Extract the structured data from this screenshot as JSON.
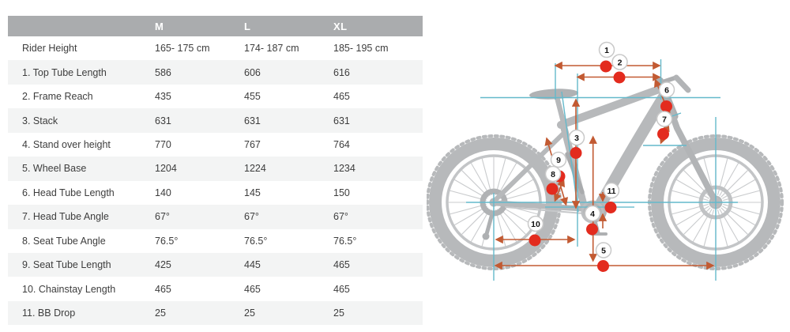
{
  "table": {
    "columns": [
      "M",
      "L",
      "XL"
    ],
    "rows": [
      {
        "label": "Rider Height",
        "values": [
          "165- 175 cm",
          "174- 187 cm",
          "185- 195 cm"
        ]
      },
      {
        "label": "1. Top Tube Length",
        "values": [
          "586",
          "606",
          "616"
        ]
      },
      {
        "label": "2. Frame Reach",
        "values": [
          "435",
          "455",
          "465"
        ]
      },
      {
        "label": "3. Stack",
        "values": [
          "631",
          "631",
          "631"
        ]
      },
      {
        "label": "4. Stand over height",
        "values": [
          "770",
          "767",
          "764"
        ]
      },
      {
        "label": "5. Wheel Base",
        "values": [
          "1204",
          "1224",
          "1234"
        ]
      },
      {
        "label": "6. Head Tube Length",
        "values": [
          "140",
          "145",
          "150"
        ]
      },
      {
        "label": "7. Head Tube Angle",
        "values": [
          "67°",
          "67°",
          "67°"
        ]
      },
      {
        "label": "8. Seat Tube Angle",
        "values": [
          "76.5°",
          "76.5°",
          "76.5°"
        ]
      },
      {
        "label": "9. Seat Tube Length",
        "values": [
          "425",
          "445",
          "465"
        ]
      },
      {
        "label": "10. Chainstay Length",
        "values": [
          "465",
          "465",
          "465"
        ]
      },
      {
        "label": "11. BB Drop",
        "values": [
          "25",
          "25",
          "25"
        ]
      }
    ]
  },
  "diagram": {
    "markers": [
      {
        "label": "1"
      },
      {
        "label": "2"
      },
      {
        "label": "3"
      },
      {
        "label": "4"
      },
      {
        "label": "5"
      },
      {
        "label": "6"
      },
      {
        "label": "7"
      },
      {
        "label": "8"
      },
      {
        "label": "9"
      },
      {
        "label": "10"
      },
      {
        "label": "11"
      }
    ]
  },
  "colors": {
    "header_bg": "#aaacae",
    "row_alt_bg": "#f3f4f4",
    "table_text": "#3d3d3d",
    "header_text": "#ffffff",
    "marker_red": "#e32b1e",
    "dimension_orange": "#c25a32",
    "reference_cyan": "#64b9cb",
    "bike_gray": "#b7b9bb",
    "badge_border": "#c9c9c9",
    "badge_text": "#111111"
  }
}
